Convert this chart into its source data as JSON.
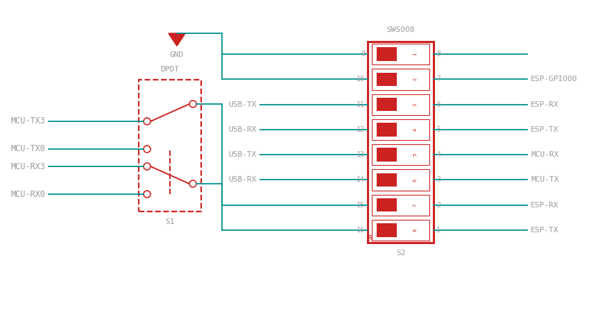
{
  "bg_color": "#ffffff",
  "red": "#cc2222",
  "teal": "#009090",
  "gray": "#999999",
  "figsize": [
    8.88,
    4.5
  ],
  "dpi": 100,
  "left_labels": [
    "MCU-TX3",
    "MCU-TX0",
    "MCU-RX3",
    "MCU-RX0"
  ],
  "right_labels_map": {
    "8": null,
    "7": "ESP-GPIO00",
    "6": "ESP-RX",
    "5": "ESP-TX",
    "4": "MCU-RX",
    "3": "MCU-TX",
    "2": "ESP-RX",
    "1": "ESP-TX"
  },
  "usb_labels_map": {
    "11": "USB-TX",
    "12": "USB-RX",
    "13": "USB-TX",
    "14": "USB-RX"
  },
  "switch_component_label": "SWS008",
  "switch_ref": "S2",
  "dpdt_label": "DPDT",
  "dpdt_ref": "S1",
  "gnd_label": "GND",
  "left_pin_nums": [
    9,
    10,
    11,
    12,
    13,
    14,
    15,
    16
  ],
  "right_pin_nums": [
    8,
    7,
    6,
    5,
    4,
    3,
    2,
    1
  ]
}
